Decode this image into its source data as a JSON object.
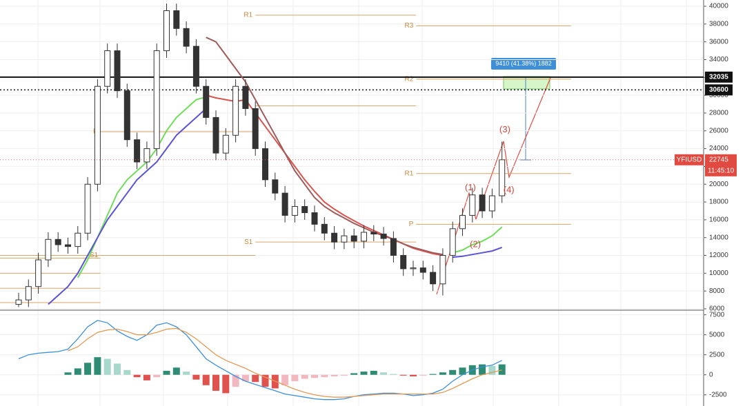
{
  "chart_data": {
    "type": "candlestick",
    "symbol": "YFIUSD",
    "current_price": 22745,
    "time": "11:45:10",
    "ylim": [
      6000,
      40700
    ],
    "yticks": [
      6000,
      8000,
      10000,
      12000,
      14000,
      16000,
      18000,
      20000,
      22000,
      24000,
      26000,
      28000,
      30000,
      32000,
      34000,
      36000,
      38000,
      40000
    ],
    "open": [
      6500,
      7000,
      8500,
      11500,
      13800,
      13200,
      13000,
      14500,
      20000,
      31000,
      35000,
      30500,
      25000,
      22500,
      24000,
      35000,
      39500,
      37500,
      35500,
      31000,
      27500,
      23500,
      25500,
      31000,
      28500,
      24000,
      20500,
      19000,
      16500,
      17500,
      16800,
      15500,
      14500,
      13500,
      14200,
      13600,
      14600,
      14400,
      13900,
      12000,
      10500,
      10600,
      10100,
      8800,
      12000,
      15000,
      16500,
      18800,
      17000,
      18700
    ],
    "high": [
      7800,
      9300,
      12300,
      14600,
      14600,
      14000,
      15300,
      20800,
      31800,
      35800,
      35800,
      31300,
      25800,
      24800,
      35800,
      40300,
      40300,
      38300,
      36300,
      31800,
      28300,
      26300,
      31800,
      31800,
      29300,
      24800,
      21300,
      19800,
      18300,
      18300,
      17600,
      16300,
      15300,
      15000,
      15000,
      15400,
      15400,
      15200,
      14700,
      12800,
      11400,
      11400,
      10900,
      12800,
      15800,
      17300,
      19600,
      19600,
      19500,
      24800
    ],
    "low": [
      6200,
      6200,
      7700,
      10700,
      12400,
      12200,
      12200,
      13700,
      19200,
      30200,
      29700,
      24200,
      21700,
      21700,
      23200,
      34200,
      36700,
      34700,
      30200,
      26700,
      22700,
      22700,
      24700,
      27700,
      23200,
      19700,
      18200,
      15700,
      15700,
      16000,
      14700,
      13700,
      12700,
      12700,
      12800,
      12800,
      13600,
      13100,
      11200,
      9700,
      9700,
      9300,
      8000,
      7500,
      11200,
      14200,
      15700,
      16200,
      16200,
      17900
    ],
    "close": [
      7000,
      8500,
      11500,
      13800,
      13200,
      13000,
      14500,
      20000,
      31000,
      35000,
      30500,
      25000,
      22500,
      24000,
      35000,
      39500,
      37500,
      35500,
      31000,
      27500,
      23500,
      25500,
      31000,
      28500,
      24000,
      20500,
      19000,
      16500,
      17500,
      16800,
      15500,
      14500,
      13500,
      14200,
      13600,
      14600,
      14400,
      13900,
      12000,
      10500,
      10600,
      10100,
      8800,
      12000,
      15000,
      16500,
      18800,
      17000,
      18700,
      22745
    ],
    "up_color": "#ffffff",
    "down_color": "#333333",
    "moving_averages": [
      {
        "color": "#6fdc5a",
        "values": [
          null,
          null,
          null,
          null,
          null,
          null,
          9500,
          11500,
          14000,
          16500,
          19000,
          20500,
          21500,
          22500,
          24000,
          26000,
          27500,
          28500,
          29500,
          29800,
          null,
          null,
          null,
          null,
          null,
          null,
          null,
          null,
          null,
          null,
          null,
          null,
          null,
          null,
          null,
          null,
          null,
          null,
          null,
          null,
          null,
          null,
          null,
          null,
          12300,
          12600,
          13200,
          13600,
          14200,
          15200
        ]
      },
      {
        "color": "#5a52d6",
        "values": [
          null,
          null,
          null,
          6500,
          7500,
          8500,
          10000,
          12000,
          14000,
          16000,
          17500,
          19000,
          20500,
          21500,
          22500,
          24000,
          25500,
          26500,
          27500,
          28500,
          null,
          null,
          null,
          null,
          null,
          null,
          null,
          null,
          null,
          null,
          null,
          null,
          null,
          null,
          null,
          null,
          null,
          null,
          null,
          null,
          null,
          null,
          null,
          null,
          11800,
          11900,
          12100,
          12300,
          12500,
          12900
        ]
      },
      {
        "color": "#d9534f",
        "values": [
          null,
          null,
          null,
          null,
          null,
          null,
          null,
          null,
          null,
          null,
          null,
          null,
          null,
          null,
          null,
          null,
          null,
          null,
          null,
          30000,
          29700,
          29500,
          29300,
          29500,
          28000,
          26500,
          25000,
          23500,
          22000,
          20500,
          19200,
          18000,
          17200,
          16500,
          15900,
          15300,
          14800,
          14300,
          13800,
          13300,
          12800,
          12500,
          12200,
          12000,
          null,
          null,
          null,
          null,
          null,
          null
        ]
      },
      {
        "color": "#a05a5a",
        "values": [
          null,
          null,
          null,
          null,
          null,
          null,
          null,
          null,
          null,
          null,
          null,
          null,
          null,
          null,
          null,
          null,
          null,
          null,
          null,
          36500,
          36000,
          34500,
          33000,
          31500,
          29500,
          27500,
          25500,
          23500,
          21500,
          20000,
          18500,
          17500,
          16800,
          16200,
          15600,
          15100,
          14600,
          14200,
          13800,
          13300,
          12900,
          12600,
          12300,
          12100,
          null,
          null,
          null,
          null,
          null,
          null
        ]
      }
    ],
    "levels": [
      {
        "value": 6700,
        "from": -2,
        "to": 8.3
      },
      {
        "value": 8300,
        "from": -2,
        "to": 8.3
      },
      {
        "value": 10000,
        "from": -2,
        "to": 8.3
      },
      {
        "value": 11700,
        "from": -2,
        "to": 8.3
      },
      {
        "label": "S1",
        "value": 12000,
        "from": -2,
        "to": 24
      },
      {
        "label": "P",
        "value": 25900,
        "from": 8.3,
        "to": 24
      },
      {
        "label": "R1",
        "value": 39000,
        "from": 24,
        "to": 40.3
      },
      {
        "value": 28800,
        "from": 24,
        "to": 40.3
      },
      {
        "label": "S1",
        "value": 13500,
        "from": 24,
        "to": 40.3
      },
      {
        "label": "R3",
        "value": 37800,
        "from": 40.3,
        "to": 56
      },
      {
        "label": "R2",
        "value": 31800,
        "from": 40.3,
        "to": 56
      },
      {
        "label": "R1",
        "value": 21200,
        "from": 40.3,
        "to": 56
      },
      {
        "label": "P",
        "value": 15500,
        "from": 40.3,
        "to": 56
      }
    ],
    "price_lines": [
      {
        "value": 32035,
        "style": "solid"
      },
      {
        "value": 30600,
        "style": "dotted"
      }
    ],
    "waves": [
      {
        "label": "(1)",
        "index": 45.8,
        "value": 19600
      },
      {
        "label": "(2)",
        "index": 46.3,
        "value": 13200
      },
      {
        "label": "(3)",
        "index": 49.3,
        "value": 26100
      },
      {
        "label": "(4)",
        "index": 49.7,
        "value": 19300
      }
    ],
    "measure_label": "9410 (41.38%) 1882",
    "macd": {
      "ylim": [
        -3900,
        7900
      ],
      "yticks": [
        -2500,
        0,
        2500,
        5000,
        7500
      ],
      "histogram": [
        0,
        0,
        0,
        0,
        0,
        300,
        800,
        1500,
        2200,
        2000,
        1400,
        600,
        -300,
        -700,
        -300,
        500,
        900,
        400,
        -600,
        -1300,
        -2000,
        -2300,
        -1500,
        -800,
        -900,
        -1500,
        -1700,
        -1300,
        -800,
        -500,
        -400,
        -300,
        -200,
        -100,
        200,
        400,
        500,
        300,
        100,
        -100,
        -200,
        -100,
        100,
        300,
        600,
        900,
        1200,
        1300,
        1100,
        1300
      ],
      "histogram_colors": {
        "rise_pos": "#2e8b74",
        "fall_pos": "#a8d8cc",
        "fall_neg": "#e0524d",
        "rise_neg": "#f2b8bf"
      },
      "lines": [
        {
          "color": "#3a8fd8",
          "values": [
            2000,
            2500,
            2700,
            2800,
            2900,
            3200,
            4500,
            6000,
            6800,
            6500,
            5500,
            4800,
            4300,
            5000,
            6200,
            6500,
            6000,
            5000,
            3500,
            2000,
            1200,
            500,
            -200,
            -800,
            -1200,
            -1600,
            -2000,
            -2400,
            -2600,
            -2800,
            -3000,
            -3100,
            -3100,
            -3000,
            -2700,
            -2500,
            -2400,
            -2300,
            -2300,
            -2400,
            -2600,
            -2500,
            -2300,
            -1800,
            -800,
            0,
            600,
            1000,
            1200,
            1800
          ]
        },
        {
          "color": "#e39a55",
          "values": [
            null,
            null,
            null,
            null,
            null,
            3000,
            3500,
            4500,
            5300,
            5600,
            5700,
            5400,
            5000,
            5000,
            5300,
            5700,
            5800,
            5300,
            4500,
            3500,
            2500,
            1800,
            1300,
            800,
            200,
            -300,
            -800,
            -1300,
            -1800,
            -2200,
            -2500,
            -2700,
            -2800,
            -2800,
            -2700,
            -2600,
            -2500,
            -2400,
            -2400,
            -2400,
            -2400,
            -2400,
            -2400,
            -2200,
            -1700,
            -1100,
            -500,
            0,
            300,
            600
          ]
        }
      ]
    }
  }
}
